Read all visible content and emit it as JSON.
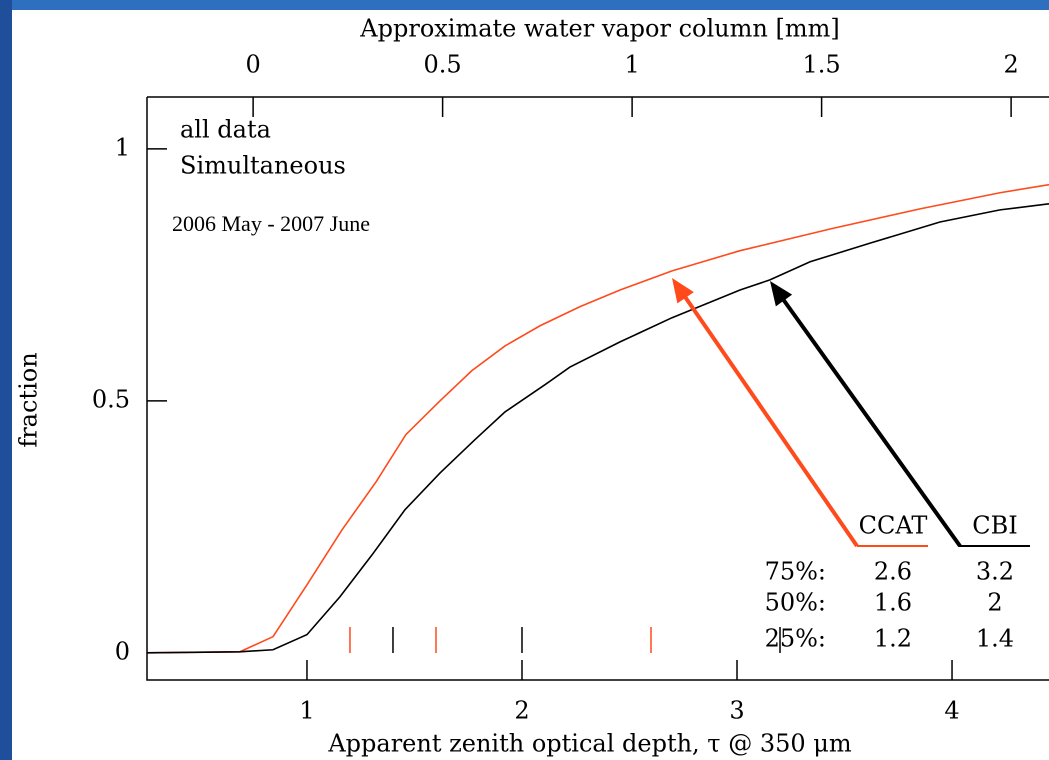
{
  "chart_data": {
    "type": "line",
    "x_label": "Apparent zenith optical depth, τ @ 350 μm",
    "x2_label": "Approximate water vapor column [mm]",
    "y_label": "fraction",
    "annotations": [
      "all data",
      "Simultaneous",
      "2006 May - 2007 June"
    ],
    "xlim": [
      0.256,
      4.451
    ],
    "xticks": [
      1,
      2,
      3,
      4
    ],
    "x2lim": [
      -0.28,
      2.1
    ],
    "x2ticks": [
      0,
      0.5,
      1,
      1.5,
      2
    ],
    "ylim": [
      -0.054,
      1.103
    ],
    "yticks": [
      0,
      0.5,
      1
    ],
    "quartile_labels": [
      "75%:",
      "50%:",
      "25%:"
    ],
    "series": [
      {
        "name": "CCAT",
        "color": "#ff4a1c",
        "x": [
          0.256,
          0.688,
          0.842,
          1.0,
          1.163,
          1.321,
          1.46,
          1.619,
          1.767,
          1.921,
          2.084,
          2.27,
          2.456,
          2.698,
          3.014,
          3.433,
          3.851,
          4.223,
          4.451
        ],
        "values": [
          0,
          0.002,
          0.032,
          0.135,
          0.244,
          0.339,
          0.433,
          0.5,
          0.56,
          0.609,
          0.649,
          0.687,
          0.72,
          0.758,
          0.798,
          0.841,
          0.881,
          0.913,
          0.929
        ],
        "quartiles": [
          2.6,
          1.6,
          1.2
        ]
      },
      {
        "name": "CBI",
        "color": "#000000",
        "x": [
          0.256,
          0.688,
          0.842,
          1.0,
          1.153,
          1.302,
          1.456,
          1.619,
          1.781,
          1.921,
          2.107,
          2.223,
          2.456,
          2.698,
          3.014,
          3.153,
          3.34,
          3.619,
          3.944,
          4.223,
          4.451
        ],
        "values": [
          0,
          0.002,
          0.006,
          0.036,
          0.111,
          0.194,
          0.284,
          0.357,
          0.423,
          0.478,
          0.532,
          0.567,
          0.617,
          0.665,
          0.72,
          0.74,
          0.776,
          0.813,
          0.855,
          0.879,
          0.891
        ],
        "quartiles": [
          3.2,
          2,
          1.4
        ]
      }
    ]
  }
}
